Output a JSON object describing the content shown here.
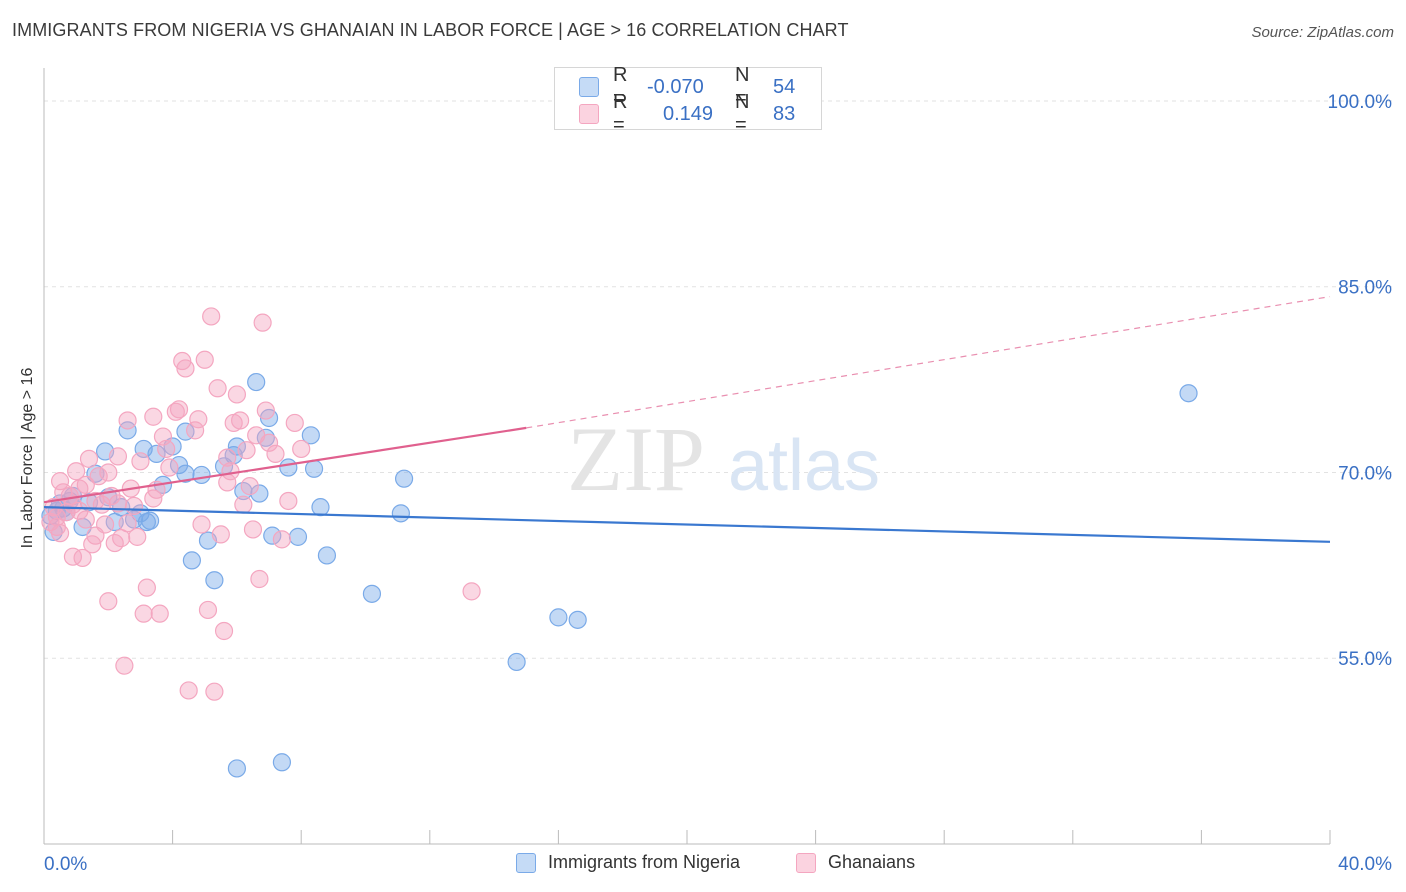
{
  "title": "IMMIGRANTS FROM NIGERIA VS GHANAIAN IN LABOR FORCE | AGE > 16 CORRELATION CHART",
  "source": "Source: ZipAtlas.com",
  "watermark": {
    "zip": "ZIP",
    "atlas": "atlas"
  },
  "legend_top": {
    "rows": [
      {
        "r_label": "R =",
        "r_value": "-0.070",
        "n_label": "N =",
        "n_value": "54"
      },
      {
        "r_label": "R =",
        "r_value": "0.149",
        "n_label": "N =",
        "n_value": "83"
      }
    ]
  },
  "chart_data": {
    "type": "scatter",
    "title": "IMMIGRANTS FROM NIGERIA VS GHANAIAN IN LABOR FORCE | AGE > 16 CORRELATION CHART",
    "xlabel": "",
    "ylabel": "In Labor Force | Age > 16",
    "xlim": [
      0,
      40
    ],
    "ylim": [
      40,
      102.5
    ],
    "x_tick_labels": [
      "0.0%",
      "40.0%"
    ],
    "y_ticks": [
      55,
      70,
      85,
      100
    ],
    "y_tick_labels": [
      "55.0%",
      "70.0%",
      "85.0%",
      "100.0%"
    ],
    "grid": true,
    "legend_position": "bottom",
    "series": [
      {
        "name": "Immigrants from Nigeria",
        "color": "#7aaae8",
        "line_color": "#3a78d0",
        "stats": {
          "R": -0.07,
          "N": 54
        },
        "trend": {
          "x": [
            0,
            40
          ],
          "y": [
            67.2,
            64.4
          ],
          "dashed_x": null
        },
        "points": [
          [
            0.2,
            66.5
          ],
          [
            0.3,
            65.2
          ],
          [
            0.4,
            66.9
          ],
          [
            0.5,
            67.5
          ],
          [
            0.6,
            67.1
          ],
          [
            0.7,
            66.8
          ],
          [
            0.8,
            67.7
          ],
          [
            0.9,
            68.1
          ],
          [
            1.2,
            65.6
          ],
          [
            1.4,
            67.6
          ],
          [
            1.6,
            69.9
          ],
          [
            1.9,
            71.7
          ],
          [
            2.0,
            68.0
          ],
          [
            2.2,
            66.0
          ],
          [
            2.4,
            67.2
          ],
          [
            2.6,
            73.4
          ],
          [
            2.8,
            66.2
          ],
          [
            3.0,
            66.7
          ],
          [
            3.1,
            71.9
          ],
          [
            3.2,
            66.0
          ],
          [
            3.3,
            66.1
          ],
          [
            3.5,
            71.5
          ],
          [
            3.7,
            69.0
          ],
          [
            4.0,
            72.1
          ],
          [
            4.2,
            70.6
          ],
          [
            4.4,
            69.9
          ],
          [
            4.4,
            73.3
          ],
          [
            4.6,
            62.9
          ],
          [
            4.9,
            69.8
          ],
          [
            5.1,
            64.5
          ],
          [
            5.3,
            61.3
          ],
          [
            5.6,
            70.5
          ],
          [
            5.9,
            71.4
          ],
          [
            6.0,
            72.1
          ],
          [
            6.0,
            46.1
          ],
          [
            6.2,
            68.5
          ],
          [
            6.6,
            77.3
          ],
          [
            6.7,
            68.3
          ],
          [
            6.9,
            72.8
          ],
          [
            7.0,
            74.4
          ],
          [
            7.1,
            64.9
          ],
          [
            7.4,
            46.6
          ],
          [
            7.6,
            70.4
          ],
          [
            7.9,
            64.8
          ],
          [
            8.3,
            73.0
          ],
          [
            8.4,
            70.3
          ],
          [
            8.6,
            67.2
          ],
          [
            8.8,
            63.3
          ],
          [
            10.2,
            60.2
          ],
          [
            11.2,
            69.5
          ],
          [
            11.1,
            66.7
          ],
          [
            14.7,
            54.7
          ],
          [
            16.0,
            58.3
          ],
          [
            16.6,
            58.1
          ],
          [
            35.6,
            76.4
          ]
        ]
      },
      {
        "name": "Ghanaians",
        "color": "#f4a6c0",
        "line_color": "#e0608e",
        "stats": {
          "R": 0.149,
          "N": 83
        },
        "trend": {
          "x": [
            0,
            15
          ],
          "y": [
            67.6,
            73.6
          ],
          "dashed_x": [
            15,
            40
          ],
          "dashed_y": [
            73.6,
            84.2
          ]
        },
        "points": [
          [
            0.2,
            66.0
          ],
          [
            0.3,
            67.2
          ],
          [
            0.4,
            66.4
          ],
          [
            0.5,
            65.1
          ],
          [
            0.5,
            69.3
          ],
          [
            0.6,
            68.4
          ],
          [
            0.7,
            66.8
          ],
          [
            0.8,
            68.1
          ],
          [
            0.9,
            67.4
          ],
          [
            1.0,
            70.1
          ],
          [
            1.1,
            68.7
          ],
          [
            1.2,
            63.1
          ],
          [
            1.3,
            66.2
          ],
          [
            1.4,
            71.1
          ],
          [
            1.5,
            64.2
          ],
          [
            1.6,
            67.7
          ],
          [
            1.7,
            69.7
          ],
          [
            1.8,
            67.4
          ],
          [
            1.9,
            65.8
          ],
          [
            2.0,
            70.0
          ],
          [
            2.0,
            59.6
          ],
          [
            2.1,
            68.1
          ],
          [
            2.2,
            64.3
          ],
          [
            2.3,
            71.3
          ],
          [
            2.4,
            64.7
          ],
          [
            2.5,
            54.4
          ],
          [
            2.6,
            74.2
          ],
          [
            2.7,
            68.7
          ],
          [
            2.8,
            67.3
          ],
          [
            2.9,
            64.8
          ],
          [
            3.0,
            70.9
          ],
          [
            3.1,
            58.6
          ],
          [
            3.2,
            60.7
          ],
          [
            3.4,
            74.5
          ],
          [
            3.5,
            68.6
          ],
          [
            3.6,
            58.6
          ],
          [
            3.7,
            72.9
          ],
          [
            3.8,
            71.9
          ],
          [
            3.9,
            70.4
          ],
          [
            4.1,
            74.9
          ],
          [
            4.2,
            75.1
          ],
          [
            4.3,
            79.0
          ],
          [
            4.4,
            78.4
          ],
          [
            4.5,
            52.4
          ],
          [
            4.7,
            73.4
          ],
          [
            4.8,
            74.3
          ],
          [
            5.0,
            79.1
          ],
          [
            5.1,
            58.9
          ],
          [
            5.2,
            82.6
          ],
          [
            5.3,
            52.3
          ],
          [
            5.4,
            76.8
          ],
          [
            5.5,
            65.0
          ],
          [
            5.6,
            57.2
          ],
          [
            5.7,
            69.2
          ],
          [
            5.8,
            70.1
          ],
          [
            5.9,
            74.0
          ],
          [
            6.0,
            76.3
          ],
          [
            6.1,
            74.2
          ],
          [
            6.2,
            67.4
          ],
          [
            6.3,
            71.8
          ],
          [
            6.5,
            65.4
          ],
          [
            6.6,
            73.0
          ],
          [
            6.7,
            61.4
          ],
          [
            6.8,
            82.1
          ],
          [
            6.9,
            75.0
          ],
          [
            7.0,
            72.4
          ],
          [
            7.2,
            71.5
          ],
          [
            7.4,
            64.6
          ],
          [
            7.6,
            67.7
          ],
          [
            7.8,
            74.0
          ],
          [
            8.0,
            71.9
          ],
          [
            1.6,
            64.9
          ],
          [
            0.9,
            63.2
          ],
          [
            1.3,
            69.0
          ],
          [
            2.6,
            65.9
          ],
          [
            3.4,
            67.9
          ],
          [
            4.9,
            65.8
          ],
          [
            5.7,
            71.2
          ],
          [
            6.4,
            68.9
          ],
          [
            13.3,
            60.4
          ],
          [
            0.4,
            65.6
          ],
          [
            1.1,
            66.9
          ],
          [
            2.3,
            67.5
          ]
        ]
      }
    ]
  }
}
